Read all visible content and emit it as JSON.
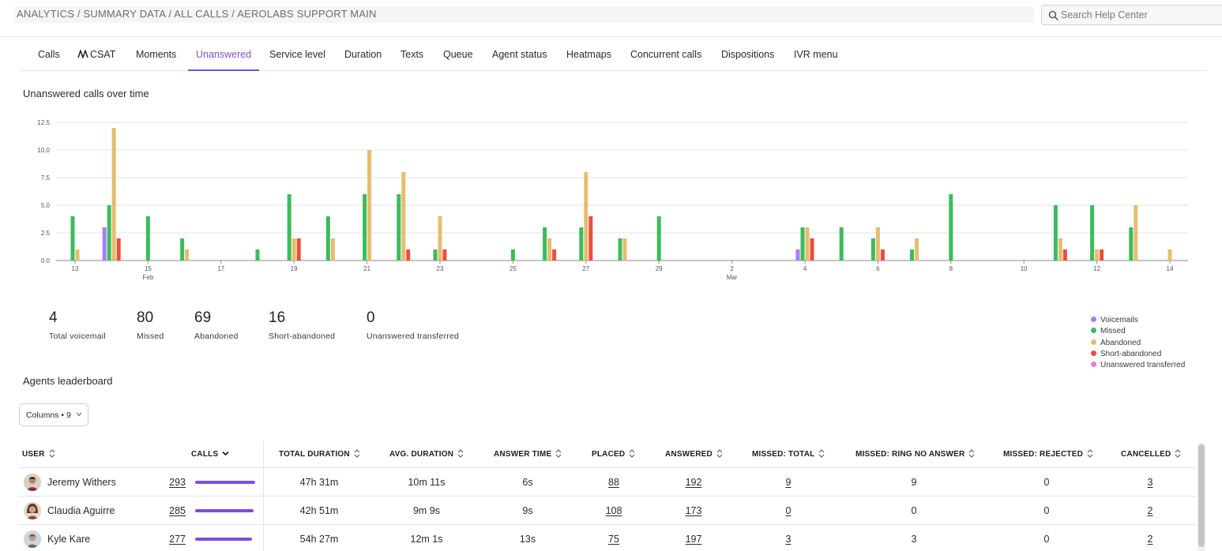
{
  "header": {
    "breadcrumb": "ANALYTICS / SUMMARY DATA / ALL CALLS / AEROLABS SUPPORT MAIN",
    "search_placeholder": "Search Help Center"
  },
  "tabs": [
    "Calls",
    "CSAT",
    "Moments",
    "Unanswered",
    "Service level",
    "Duration",
    "Texts",
    "Queue",
    "Agent status",
    "Heatmaps",
    "Concurrent calls",
    "Dispositions",
    "IVR menu"
  ],
  "active_tab": "Unanswered",
  "chart_title": "Unanswered calls over time",
  "chart_data": {
    "type": "bar",
    "title": "Unanswered calls over time",
    "ylim": [
      0,
      12.5
    ],
    "y_ticks": [
      "0.0",
      "2.5",
      "5.0",
      "7.5",
      "10.0",
      "12.5"
    ],
    "x_tick_labels": [
      {
        "label": "13",
        "sub": ""
      },
      {
        "label": "15",
        "sub": "Feb"
      },
      {
        "label": "17",
        "sub": ""
      },
      {
        "label": "19",
        "sub": ""
      },
      {
        "label": "21",
        "sub": ""
      },
      {
        "label": "23",
        "sub": ""
      },
      {
        "label": "25",
        "sub": ""
      },
      {
        "label": "27",
        "sub": ""
      },
      {
        "label": "29",
        "sub": ""
      },
      {
        "label": "2",
        "sub": "Mar"
      },
      {
        "label": "4",
        "sub": ""
      },
      {
        "label": "6",
        "sub": ""
      },
      {
        "label": "8",
        "sub": ""
      },
      {
        "label": "10",
        "sub": ""
      },
      {
        "label": "12",
        "sub": ""
      },
      {
        "label": "14",
        "sub": ""
      }
    ],
    "categories": [
      "Feb 13",
      "Feb 14",
      "Feb 15",
      "Feb 16",
      "Feb 17",
      "Feb 18",
      "Feb 19",
      "Feb 20",
      "Feb 21",
      "Feb 22",
      "Feb 23",
      "Feb 24",
      "Feb 25",
      "Feb 26",
      "Feb 27",
      "Feb 28",
      "Feb 29",
      "Mar 1",
      "Mar 2",
      "Mar 3",
      "Mar 4",
      "Mar 5",
      "Mar 6",
      "Mar 7",
      "Mar 8",
      "Mar 9",
      "Mar 10",
      "Mar 11",
      "Mar 12",
      "Mar 13",
      "Mar 14"
    ],
    "series": [
      {
        "name": "Voicemails",
        "color": "#a77ef5",
        "values": [
          0,
          3,
          0,
          0,
          0,
          0,
          0,
          0,
          0,
          0,
          0,
          0,
          0,
          0,
          0,
          0,
          0,
          0,
          0,
          0,
          1,
          0,
          0,
          0,
          0,
          0,
          0,
          0,
          0,
          0,
          0
        ]
      },
      {
        "name": "Missed",
        "color": "#3dbb5c",
        "values": [
          4,
          5,
          4,
          2,
          0,
          1,
          6,
          4,
          6,
          6,
          1,
          0,
          1,
          3,
          3,
          2,
          4,
          0,
          0,
          0,
          3,
          3,
          2,
          1,
          6,
          0,
          0,
          5,
          5,
          3,
          0
        ]
      },
      {
        "name": "Abandoned",
        "color": "#e6bd6e",
        "values": [
          1,
          12,
          0,
          1,
          0,
          0,
          2,
          2,
          10,
          8,
          4,
          0,
          0,
          2,
          8,
          2,
          0,
          0,
          0,
          0,
          3,
          0,
          3,
          2,
          0,
          0,
          0,
          2,
          1,
          5,
          1
        ]
      },
      {
        "name": "Short-abandoned",
        "color": "#ee4d3c",
        "values": [
          0,
          2,
          0,
          0,
          0,
          0,
          2,
          0,
          0,
          1,
          1,
          0,
          0,
          1,
          4,
          0,
          0,
          0,
          0,
          0,
          2,
          0,
          1,
          0,
          0,
          0,
          0,
          1,
          1,
          0,
          0
        ]
      },
      {
        "name": "Unanswered transferred",
        "color": "#df7fe0",
        "values": [
          0,
          0,
          0,
          0,
          0,
          0,
          0,
          0,
          0,
          0,
          0,
          0,
          0,
          0,
          0,
          0,
          0,
          0,
          0,
          0,
          0,
          0,
          0,
          0,
          0,
          0,
          0,
          0,
          0,
          0,
          0
        ]
      }
    ]
  },
  "stats": [
    {
      "value": "4",
      "label": "Total voicemail"
    },
    {
      "value": "80",
      "label": "Missed"
    },
    {
      "value": "69",
      "label": "Abandoned"
    },
    {
      "value": "16",
      "label": "Short-abandoned"
    },
    {
      "value": "0",
      "label": "Unanswered transferred"
    }
  ],
  "legend": [
    {
      "name": "Voicemails",
      "color": "#a77ef5"
    },
    {
      "name": "Missed",
      "color": "#3dbb5c"
    },
    {
      "name": "Abandoned",
      "color": "#e6bd6e"
    },
    {
      "name": "Short-abandoned",
      "color": "#ee4d3c"
    },
    {
      "name": "Unanswered transferred",
      "color": "#df7fe0"
    }
  ],
  "leaderboard": {
    "title": "Agents leaderboard",
    "columns_button": "Columns • 9",
    "headers": {
      "user": "User",
      "calls": "Calls",
      "total_duration": "Total duration",
      "avg_duration": "Avg. duration",
      "answer_time": "Answer time",
      "placed": "Placed",
      "answered": "Answered",
      "missed_total": "Missed: total",
      "missed_ring": "Missed: ring no answer",
      "missed_rejected": "Missed: rejected",
      "cancelled": "Cancelled"
    },
    "calls_bar_color": "#7a4fe0",
    "rows": [
      {
        "user": "Jeremy Withers",
        "calls": "293",
        "calls_share": 1.0,
        "total_duration": "47h 31m",
        "avg_duration": "10m 11s",
        "answer_time": "6s",
        "placed": "88",
        "answered": "192",
        "missed_total": "9",
        "missed_ring": "9",
        "missed_rejected": "0",
        "cancelled": "3"
      },
      {
        "user": "Claudia Aguirre",
        "calls": "285",
        "calls_share": 0.973,
        "total_duration": "42h 51m",
        "avg_duration": "9m 9s",
        "answer_time": "9s",
        "placed": "108",
        "answered": "173",
        "missed_total": "0",
        "missed_ring": "0",
        "missed_rejected": "0",
        "cancelled": "2"
      },
      {
        "user": "Kyle Kare",
        "calls": "277",
        "calls_share": 0.945,
        "total_duration": "54h 27m",
        "avg_duration": "12m 1s",
        "answer_time": "13s",
        "placed": "75",
        "answered": "197",
        "missed_total": "3",
        "missed_ring": "3",
        "missed_rejected": "0",
        "cancelled": "2"
      }
    ]
  }
}
